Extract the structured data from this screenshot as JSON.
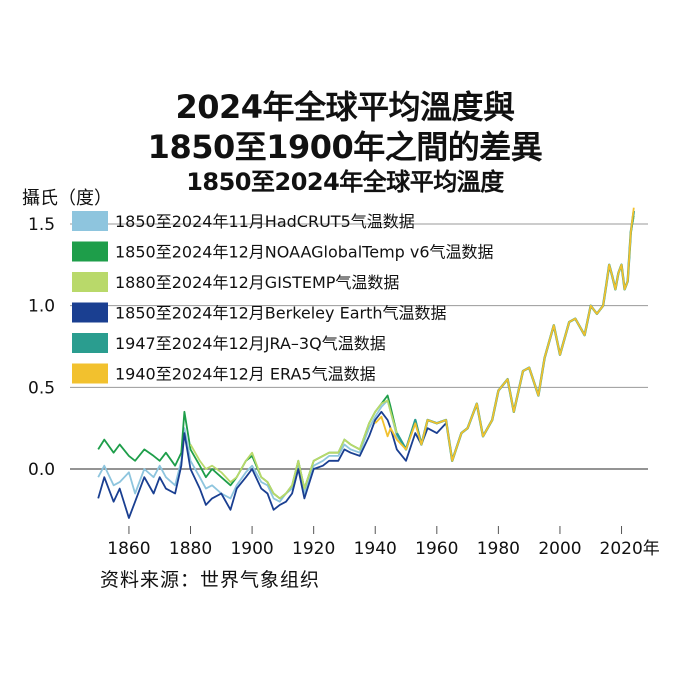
{
  "chart_data": {
    "type": "line",
    "title": "2024年全球平均溫度與",
    "title_line2": "1850至1900年之間的差異",
    "subtitle": "1850至2024年全球平均溫度",
    "ylabel": "攝氏（度）",
    "x_unit": "年",
    "source": "资料来源：世界气象组织",
    "xlim": [
      1848,
      2026
    ],
    "ylim": [
      -0.3,
      1.6
    ],
    "x_ticks": [
      1860,
      1880,
      1900,
      1920,
      1940,
      1960,
      1980,
      2000,
      2020
    ],
    "x_tick_labels": [
      "1860",
      "1880",
      "1900",
      "1920",
      "1940",
      "1960",
      "1980",
      "2000",
      "2020年"
    ],
    "y_ticks": [
      0.0,
      0.5,
      1.0,
      1.5
    ],
    "y_tick_labels": [
      "0.0",
      "0.5",
      "1.0",
      "1.5"
    ],
    "grid": "horizontal",
    "legend_position": "top-left",
    "series": [
      {
        "name": "1850至2024年11月HadCRUT5气温数据",
        "color": "#8ec5de",
        "x": [
          1850,
          1852,
          1855,
          1857,
          1860,
          1862,
          1865,
          1868,
          1870,
          1872,
          1875,
          1877,
          1878,
          1880,
          1883,
          1885,
          1887,
          1890,
          1893,
          1895,
          1898,
          1900,
          1903,
          1905,
          1907,
          1909,
          1911,
          1913,
          1915,
          1917,
          1920,
          1923,
          1925,
          1928,
          1930,
          1932,
          1935,
          1938,
          1940,
          1942,
          1944,
          1945,
          1947,
          1950,
          1953,
          1955,
          1957,
          1960,
          1963,
          1965,
          1968,
          1970,
          1973,
          1975,
          1978,
          1980,
          1983,
          1985,
          1988,
          1990,
          1993,
          1995,
          1998,
          2000,
          2003,
          2005,
          2008,
          2010,
          2012,
          2014,
          2015,
          2016,
          2017,
          2018,
          2019,
          2020,
          2021,
          2022,
          2023,
          2024
        ],
        "y": [
          -0.05,
          0.02,
          -0.1,
          -0.08,
          -0.02,
          -0.15,
          0.0,
          -0.05,
          0.02,
          -0.05,
          -0.1,
          0.05,
          0.25,
          0.05,
          -0.05,
          -0.12,
          -0.1,
          -0.15,
          -0.18,
          -0.1,
          -0.02,
          0.02,
          -0.08,
          -0.1,
          -0.18,
          -0.2,
          -0.15,
          -0.12,
          0.02,
          -0.15,
          0.02,
          0.05,
          0.08,
          0.08,
          0.15,
          0.12,
          0.1,
          0.25,
          0.32,
          0.38,
          0.42,
          0.35,
          0.2,
          0.12,
          0.28,
          0.15,
          0.3,
          0.28,
          0.3,
          0.05,
          0.22,
          0.25,
          0.4,
          0.2,
          0.3,
          0.48,
          0.55,
          0.35,
          0.6,
          0.62,
          0.45,
          0.68,
          0.88,
          0.7,
          0.9,
          0.92,
          0.82,
          1.0,
          0.95,
          1.0,
          1.12,
          1.25,
          1.18,
          1.1,
          1.2,
          1.25,
          1.1,
          1.15,
          1.45,
          1.55
        ]
      },
      {
        "name": "1850至2024年12月NOAAGlobalTemp v6气温数据",
        "color": "#1e9e4a",
        "x": [
          1850,
          1852,
          1855,
          1857,
          1860,
          1862,
          1865,
          1868,
          1870,
          1872,
          1875,
          1877,
          1878,
          1880,
          1883,
          1885,
          1887,
          1890,
          1893,
          1895,
          1898,
          1900,
          1903,
          1905,
          1907,
          1909,
          1911,
          1913,
          1915,
          1917,
          1920,
          1923,
          1925,
          1928,
          1930,
          1932,
          1935,
          1938,
          1940,
          1942,
          1944,
          1945,
          1947,
          1950,
          1953,
          1955,
          1957,
          1960,
          1963,
          1965,
          1968,
          1970,
          1973,
          1975,
          1978,
          1980,
          1983,
          1985,
          1988,
          1990,
          1993,
          1995,
          1998,
          2000,
          2003,
          2005,
          2008,
          2010,
          2012,
          2014,
          2015,
          2016,
          2017,
          2018,
          2019,
          2020,
          2021,
          2022,
          2023,
          2024
        ],
        "y": [
          0.12,
          0.18,
          0.1,
          0.15,
          0.08,
          0.05,
          0.12,
          0.08,
          0.05,
          0.1,
          0.02,
          0.1,
          0.35,
          0.12,
          0.02,
          -0.05,
          0.0,
          -0.05,
          -0.1,
          -0.05,
          0.05,
          0.08,
          -0.05,
          -0.08,
          -0.15,
          -0.18,
          -0.15,
          -0.1,
          0.05,
          -0.12,
          0.05,
          0.08,
          0.1,
          0.1,
          0.18,
          0.15,
          0.12,
          0.28,
          0.35,
          0.4,
          0.45,
          0.38,
          0.22,
          0.12,
          0.3,
          0.15,
          0.3,
          0.28,
          0.3,
          0.05,
          0.22,
          0.25,
          0.4,
          0.2,
          0.3,
          0.48,
          0.55,
          0.35,
          0.6,
          0.62,
          0.45,
          0.68,
          0.88,
          0.7,
          0.9,
          0.92,
          0.82,
          1.0,
          0.95,
          1.0,
          1.12,
          1.25,
          1.18,
          1.1,
          1.2,
          1.25,
          1.1,
          1.15,
          1.45,
          1.55
        ]
      },
      {
        "name": "1880至2024年12月GISTEMP气温数据",
        "color": "#b9d96a",
        "x": [
          1880,
          1883,
          1885,
          1887,
          1890,
          1893,
          1895,
          1898,
          1900,
          1903,
          1905,
          1907,
          1909,
          1911,
          1913,
          1915,
          1917,
          1920,
          1923,
          1925,
          1928,
          1930,
          1932,
          1935,
          1938,
          1940,
          1942,
          1944,
          1945,
          1947,
          1950,
          1953,
          1955,
          1957,
          1960,
          1963,
          1965,
          1968,
          1970,
          1973,
          1975,
          1978,
          1980,
          1983,
          1985,
          1988,
          1990,
          1993,
          1995,
          1998,
          2000,
          2003,
          2005,
          2008,
          2010,
          2012,
          2014,
          2015,
          2016,
          2017,
          2018,
          2019,
          2020,
          2021,
          2022,
          2023,
          2024
        ],
        "y": [
          0.15,
          0.05,
          0.0,
          0.02,
          -0.02,
          -0.08,
          -0.05,
          0.05,
          0.1,
          -0.05,
          -0.08,
          -0.15,
          -0.18,
          -0.15,
          -0.1,
          0.05,
          -0.12,
          0.05,
          0.08,
          0.1,
          0.1,
          0.18,
          0.15,
          0.12,
          0.28,
          0.35,
          0.4,
          0.42,
          0.35,
          0.22,
          0.12,
          0.3,
          0.15,
          0.3,
          0.28,
          0.3,
          0.05,
          0.22,
          0.25,
          0.4,
          0.2,
          0.3,
          0.48,
          0.55,
          0.35,
          0.6,
          0.62,
          0.45,
          0.68,
          0.88,
          0.7,
          0.9,
          0.92,
          0.82,
          1.0,
          0.95,
          1.0,
          1.12,
          1.25,
          1.18,
          1.1,
          1.2,
          1.25,
          1.1,
          1.15,
          1.45,
          1.55
        ]
      },
      {
        "name": "1850至2024年12月Berkeley Earth气温数据",
        "color": "#1a3f91",
        "x": [
          1850,
          1852,
          1855,
          1857,
          1860,
          1862,
          1865,
          1868,
          1870,
          1872,
          1875,
          1877,
          1878,
          1880,
          1883,
          1885,
          1887,
          1890,
          1893,
          1895,
          1898,
          1900,
          1903,
          1905,
          1907,
          1909,
          1911,
          1913,
          1915,
          1917,
          1920,
          1923,
          1925,
          1928,
          1930,
          1932,
          1935,
          1938,
          1940,
          1942,
          1944,
          1945,
          1947,
          1950,
          1953,
          1955,
          1957,
          1960,
          1963
        ],
        "y": [
          -0.18,
          -0.05,
          -0.2,
          -0.12,
          -0.3,
          -0.2,
          -0.05,
          -0.15,
          -0.05,
          -0.12,
          -0.15,
          0.02,
          0.22,
          0.0,
          -0.12,
          -0.22,
          -0.18,
          -0.15,
          -0.25,
          -0.12,
          -0.05,
          0.0,
          -0.12,
          -0.15,
          -0.25,
          -0.22,
          -0.2,
          -0.15,
          0.0,
          -0.18,
          0.0,
          0.02,
          0.05,
          0.05,
          0.12,
          0.1,
          0.08,
          0.2,
          0.3,
          0.35,
          0.3,
          0.25,
          0.12,
          0.05,
          0.22,
          0.15,
          0.25,
          0.22,
          0.28
        ]
      },
      {
        "name": "1947至2024年12月JRA–3Q气温数据",
        "color": "#2a9d8f",
        "x": [
          1947,
          1950,
          1953,
          1955,
          1957,
          1960,
          1963,
          1965,
          1968,
          1970,
          1973,
          1975,
          1978,
          1980,
          1983,
          1985,
          1988,
          1990,
          1993,
          1995,
          1998,
          2000,
          2003,
          2005,
          2008,
          2010,
          2012,
          2014,
          2015,
          2016,
          2017,
          2018,
          2019,
          2020,
          2021,
          2022,
          2023,
          2024
        ],
        "y": [
          0.22,
          0.12,
          0.3,
          0.15,
          0.3,
          0.28,
          0.3,
          0.05,
          0.22,
          0.25,
          0.4,
          0.2,
          0.3,
          0.48,
          0.55,
          0.35,
          0.6,
          0.62,
          0.45,
          0.68,
          0.88,
          0.7,
          0.9,
          0.92,
          0.82,
          1.0,
          0.95,
          1.0,
          1.12,
          1.25,
          1.18,
          1.1,
          1.2,
          1.25,
          1.1,
          1.15,
          1.45,
          1.58
        ]
      },
      {
        "name": "1940至2024年12月 ERA5气温数据",
        "color": "#f2c12e",
        "x": [
          1940,
          1942,
          1944,
          1945,
          1947,
          1950,
          1953,
          1955,
          1957,
          1960,
          1963,
          1965,
          1968,
          1970,
          1973,
          1975,
          1978,
          1980,
          1983,
          1985,
          1988,
          1990,
          1993,
          1995,
          1998,
          2000,
          2003,
          2005,
          2008,
          2010,
          2012,
          2014,
          2015,
          2016,
          2017,
          2018,
          2019,
          2020,
          2021,
          2022,
          2023,
          2024
        ],
        "y": [
          0.28,
          0.32,
          0.2,
          0.25,
          0.18,
          0.12,
          0.28,
          0.15,
          0.3,
          0.28,
          0.3,
          0.05,
          0.22,
          0.25,
          0.4,
          0.2,
          0.3,
          0.48,
          0.55,
          0.35,
          0.6,
          0.62,
          0.45,
          0.68,
          0.88,
          0.7,
          0.9,
          0.92,
          0.82,
          1.0,
          0.95,
          1.0,
          1.12,
          1.25,
          1.18,
          1.1,
          1.2,
          1.25,
          1.1,
          1.15,
          1.45,
          1.6
        ]
      }
    ]
  }
}
